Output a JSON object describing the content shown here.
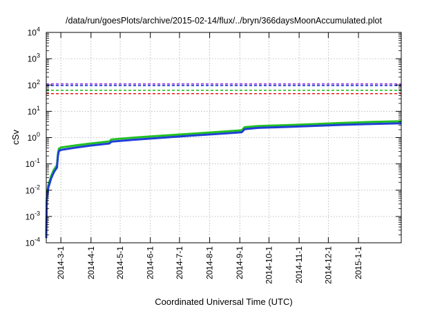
{
  "chart_data": {
    "type": "line",
    "title": "/data/run/goesPlots/archive/2015-02-14/flux/../bryn/366daysMoonAccumulated.plot",
    "xlabel": "Coordinated Universal Time (UTC)",
    "ylabel": "cSv",
    "x_range": [
      "2014-02-14",
      "2015-02-14"
    ],
    "ylim": [
      0.0001,
      10000
    ],
    "yscale": "log",
    "grid": true,
    "y_ticks": [
      {
        "value": 0.0001,
        "base": "10",
        "exp": "-4"
      },
      {
        "value": 0.001,
        "base": "10",
        "exp": "-3"
      },
      {
        "value": 0.01,
        "base": "10",
        "exp": "-2"
      },
      {
        "value": 0.1,
        "base": "10",
        "exp": "-1"
      },
      {
        "value": 1,
        "base": "10",
        "exp": "0"
      },
      {
        "value": 10,
        "base": "10",
        "exp": "1"
      },
      {
        "value": 100,
        "base": "10",
        "exp": "2"
      },
      {
        "value": 1000,
        "base": "10",
        "exp": "3"
      },
      {
        "value": 10000,
        "base": "10",
        "exp": "4"
      }
    ],
    "x_ticks": [
      "2014-3-1",
      "2014-4-1",
      "2014-5-1",
      "2014-6-1",
      "2014-7-1",
      "2014-8-1",
      "2014-9-1",
      "2014-10-1",
      "2014-11-1",
      "2014-12-1",
      "2015-1-1"
    ],
    "thresholds": [
      {
        "value": 110,
        "color": "#8a2be2"
      },
      {
        "value": 95,
        "color": "#1f3fd6"
      },
      {
        "value": 63,
        "color": "#22c022"
      },
      {
        "value": 47,
        "color": "#ee1111"
      }
    ],
    "series": [
      {
        "color": "#22c022",
        "points": [
          [
            "2014-02-14",
            0.0002
          ],
          [
            "2014-02-14.5",
            0.005
          ],
          [
            "2014-02-16",
            0.015
          ],
          [
            "2014-02-19",
            0.035
          ],
          [
            "2014-02-22",
            0.062
          ],
          [
            "2014-02-25",
            0.09
          ],
          [
            "2014-02-26",
            0.25
          ],
          [
            "2014-02-27",
            0.38
          ],
          [
            "2014-03-01",
            0.42
          ],
          [
            "2014-03-15",
            0.5
          ],
          [
            "2014-04-01",
            0.6
          ],
          [
            "2014-04-20",
            0.72
          ],
          [
            "2014-04-22",
            0.85
          ],
          [
            "2014-05-15",
            1.0
          ],
          [
            "2014-06-15",
            1.2
          ],
          [
            "2014-07-15",
            1.42
          ],
          [
            "2014-08-15",
            1.7
          ],
          [
            "2014-09-03",
            1.9
          ],
          [
            "2014-09-06",
            2.5
          ],
          [
            "2014-09-20",
            2.75
          ],
          [
            "2014-10-15",
            2.95
          ],
          [
            "2014-11-15",
            3.25
          ],
          [
            "2014-12-15",
            3.6
          ],
          [
            "2015-01-15",
            3.95
          ],
          [
            "2015-02-14",
            4.2
          ]
        ]
      },
      {
        "color": "#1f3fd6",
        "points": [
          [
            "2014-02-14",
            0.00015
          ],
          [
            "2014-02-14.5",
            0.004
          ],
          [
            "2014-02-16",
            0.012
          ],
          [
            "2014-02-19",
            0.028
          ],
          [
            "2014-02-22",
            0.05
          ],
          [
            "2014-02-25",
            0.072
          ],
          [
            "2014-02-26",
            0.2
          ],
          [
            "2014-02-27",
            0.31
          ],
          [
            "2014-03-01",
            0.34
          ],
          [
            "2014-03-15",
            0.41
          ],
          [
            "2014-04-01",
            0.5
          ],
          [
            "2014-04-20",
            0.6
          ],
          [
            "2014-04-22",
            0.7
          ],
          [
            "2014-05-15",
            0.83
          ],
          [
            "2014-06-15",
            1.0
          ],
          [
            "2014-07-15",
            1.2
          ],
          [
            "2014-08-15",
            1.42
          ],
          [
            "2014-09-03",
            1.6
          ],
          [
            "2014-09-06",
            2.1
          ],
          [
            "2014-09-20",
            2.35
          ],
          [
            "2014-10-15",
            2.52
          ],
          [
            "2014-11-15",
            2.78
          ],
          [
            "2014-12-15",
            3.05
          ],
          [
            "2015-01-15",
            3.3
          ],
          [
            "2015-02-14",
            3.5
          ]
        ]
      }
    ]
  }
}
